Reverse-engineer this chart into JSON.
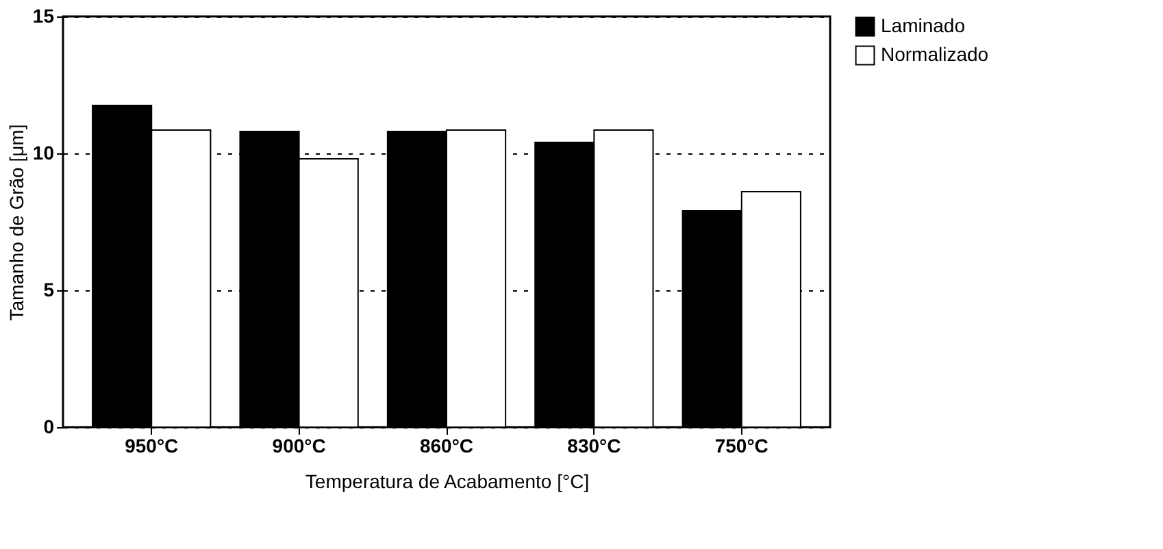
{
  "chart_data": {
    "type": "bar",
    "xlabel": "Temperatura de Acabamento [°C]",
    "ylabel": "Tamanho de Grão [μm]",
    "categories": [
      "950°C",
      "900°C",
      "860°C",
      "830°C",
      "750°C"
    ],
    "series": [
      {
        "name": "Laminado",
        "color": "#000000",
        "values": [
          11.75,
          10.8,
          10.8,
          10.4,
          7.9
        ]
      },
      {
        "name": "Normalizado",
        "color": "#ffffff",
        "values": [
          10.85,
          9.8,
          10.85,
          10.85,
          8.6
        ]
      }
    ],
    "ylim": [
      0,
      15
    ],
    "yticks": [
      0,
      5,
      10,
      15
    ],
    "grid": "y",
    "line_style": "dotted",
    "legend": "right"
  }
}
